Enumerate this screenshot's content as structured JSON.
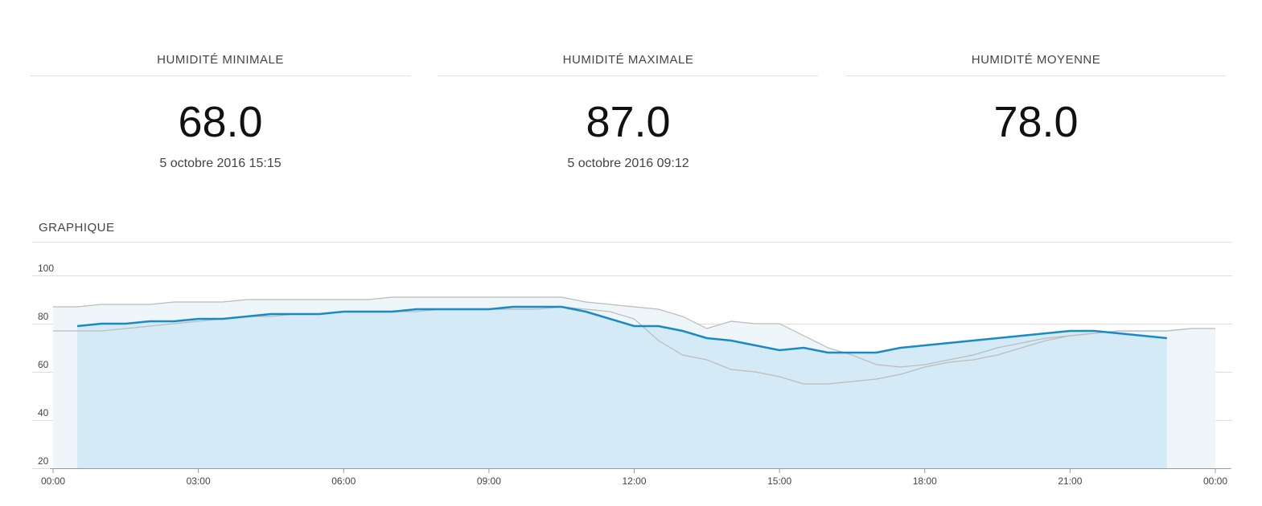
{
  "stats": [
    {
      "label": "HUMIDITÉ MINIMALE",
      "value": "68.0",
      "date": "5 octobre 2016 15:15"
    },
    {
      "label": "HUMIDITÉ MAXIMALE",
      "value": "87.0",
      "date": "5 octobre 2016 09:12"
    },
    {
      "label": "HUMIDITÉ MOYENNE",
      "value": "78.0"
    }
  ],
  "chart_title": "GRAPHIQUE",
  "chart_data": {
    "type": "line",
    "x": [
      0,
      0.5,
      1,
      1.5,
      2,
      2.5,
      3,
      3.5,
      4,
      4.5,
      5,
      5.5,
      6,
      6.5,
      7,
      7.5,
      8,
      8.5,
      9,
      9.5,
      10,
      10.5,
      11,
      11.5,
      12,
      12.5,
      13,
      13.5,
      14,
      14.5,
      15,
      15.5,
      16,
      16.5,
      17,
      17.5,
      18,
      18.5,
      19,
      19.5,
      20,
      20.5,
      21,
      21.5,
      22,
      22.5,
      23,
      23.5,
      24
    ],
    "series": [
      {
        "color": "#1a8ac6",
        "fill": "#d4eaf6",
        "area": true,
        "values": [
          null,
          79,
          80,
          80,
          81,
          81,
          82,
          82,
          83,
          84,
          84,
          84,
          85,
          85,
          85,
          86,
          86,
          86,
          86,
          87,
          87,
          87,
          85,
          82,
          79,
          79,
          77,
          74,
          73,
          71,
          69,
          70,
          68,
          68,
          68,
          70,
          71,
          72,
          73,
          74,
          75,
          76,
          77,
          77,
          76,
          75,
          74,
          null,
          null
        ]
      },
      {
        "color": "#bbbbbb",
        "fill": "#eef6fa",
        "area": true,
        "values": [
          87,
          87,
          88,
          88,
          88,
          89,
          89,
          89,
          90,
          90,
          90,
          90,
          90,
          90,
          91,
          91,
          91,
          91,
          91,
          91,
          91,
          91,
          89,
          88,
          87,
          86,
          83,
          78,
          81,
          80,
          80,
          75,
          70,
          67,
          63,
          62,
          63,
          65,
          67,
          70,
          72,
          74,
          75,
          76,
          77,
          77,
          77,
          78,
          78
        ]
      },
      {
        "color": "#bbbbbb",
        "area": false,
        "values": [
          77,
          77,
          77,
          78,
          79,
          80,
          81,
          82,
          83,
          83,
          84,
          84,
          85,
          85,
          85,
          85,
          86,
          86,
          86,
          86,
          86,
          87,
          86,
          85,
          82,
          73,
          67,
          65,
          61,
          60,
          58,
          55,
          55,
          56,
          57,
          59,
          62,
          64,
          65,
          67,
          70,
          73,
          75,
          76,
          77,
          77,
          77,
          78,
          null
        ]
      }
    ],
    "xlim": [
      0,
      24
    ],
    "xticks": [
      {
        "value": 0,
        "label": "00:00"
      },
      {
        "value": 3,
        "label": "03:00"
      },
      {
        "value": 6,
        "label": "06:00"
      },
      {
        "value": 9,
        "label": "09:00"
      },
      {
        "value": 12,
        "label": "12:00"
      },
      {
        "value": 15,
        "label": "15:00"
      },
      {
        "value": 18,
        "label": "18:00"
      },
      {
        "value": 21,
        "label": "21:00"
      },
      {
        "value": 24,
        "label": "00:00"
      }
    ],
    "ylim": [
      20,
      100
    ],
    "yticks": [
      20,
      40,
      60,
      80,
      100
    ],
    "grid": true
  }
}
